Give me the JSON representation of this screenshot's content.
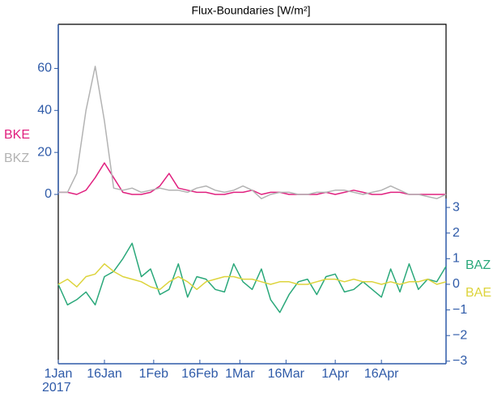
{
  "chart_data": {
    "type": "line",
    "title": "Flux-Boundaries [W/m²]",
    "x": [
      "2017-01-01",
      "2017-01-04",
      "2017-01-07",
      "2017-01-10",
      "2017-01-13",
      "2017-01-16",
      "2017-01-19",
      "2017-01-22",
      "2017-01-25",
      "2017-01-28",
      "2017-01-31",
      "2017-02-03",
      "2017-02-06",
      "2017-02-09",
      "2017-02-12",
      "2017-02-15",
      "2017-02-18",
      "2017-02-21",
      "2017-02-24",
      "2017-02-27",
      "2017-03-02",
      "2017-03-05",
      "2017-03-08",
      "2017-03-11",
      "2017-03-14",
      "2017-03-17",
      "2017-03-20",
      "2017-03-23",
      "2017-03-26",
      "2017-03-29",
      "2017-04-01",
      "2017-04-04",
      "2017-04-07",
      "2017-04-10",
      "2017-04-13",
      "2017-04-16",
      "2017-04-19",
      "2017-04-22",
      "2017-04-25",
      "2017-04-28",
      "2017-05-01",
      "2017-05-04",
      "2017-05-07"
    ],
    "x_sublabel": "2017",
    "xlim": [
      "2017-01-01",
      "2017-05-07"
    ],
    "xticks": [
      {
        "value": "2017-01-01",
        "label": "1Jan"
      },
      {
        "value": "2017-01-16",
        "label": "16Jan"
      },
      {
        "value": "2017-02-01",
        "label": "1Feb"
      },
      {
        "value": "2017-02-16",
        "label": "16Feb"
      },
      {
        "value": "2017-03-01",
        "label": "1Mar"
      },
      {
        "value": "2017-03-16",
        "label": "16Mar"
      },
      {
        "value": "2017-04-01",
        "label": "1Apr"
      },
      {
        "value": "2017-04-16",
        "label": "16Apr"
      }
    ],
    "ylim": [
      0,
      81
    ],
    "yticks": [
      0,
      20,
      40,
      60
    ],
    "y2lim": [
      -3.1,
      3.35
    ],
    "y2ticks": [
      3,
      2,
      1,
      0,
      {
        "value": -1,
        "label": "−1"
      },
      {
        "value": -2,
        "label": "−2"
      },
      {
        "value": -3,
        "label": "−3"
      }
    ],
    "series": [
      {
        "name": "BKE",
        "color": "#e0207f",
        "values": [
          1,
          1,
          0,
          2,
          8,
          15,
          8,
          1,
          0,
          0,
          1,
          4,
          10,
          3,
          2,
          1,
          1,
          0,
          0,
          1,
          1,
          2,
          0,
          1,
          1,
          0,
          0,
          0,
          0,
          1,
          0,
          1,
          2,
          1,
          0,
          0,
          1,
          1,
          0,
          0,
          0,
          0,
          0
        ]
      },
      {
        "name": "BKZ",
        "color": "#b3b3b3",
        "values": [
          1,
          1,
          10,
          40,
          61,
          35,
          3,
          2,
          3,
          1,
          2,
          3,
          2,
          2,
          1,
          3,
          4,
          2,
          1,
          2,
          4,
          2,
          -2,
          0,
          1,
          1,
          0,
          0,
          1,
          1,
          2,
          2,
          1,
          0,
          1,
          2,
          4,
          2,
          0,
          0,
          -1,
          -2,
          0
        ]
      },
      {
        "name": "BAZ",
        "color": "#2aa87a",
        "axis": "y2",
        "values": [
          0,
          -0.8,
          -0.6,
          -0.3,
          -0.8,
          0.3,
          0.5,
          1.0,
          1.6,
          0.3,
          0.6,
          -0.4,
          -0.2,
          0.8,
          -0.5,
          0.3,
          0.2,
          -0.2,
          -0.3,
          0.8,
          0.1,
          -0.2,
          0.6,
          -0.6,
          -1.1,
          -0.4,
          0.1,
          0.2,
          -0.4,
          0.3,
          0.4,
          -0.3,
          -0.2,
          0.1,
          -0.2,
          -0.5,
          0.6,
          -0.3,
          0.8,
          -0.2,
          0.2,
          0.1,
          0.7
        ]
      },
      {
        "name": "BAE",
        "color": "#ddd43c",
        "axis": "y2",
        "values": [
          0,
          0.2,
          -0.1,
          0.3,
          0.4,
          0.8,
          0.5,
          0.3,
          0.2,
          0.1,
          -0.1,
          -0.2,
          0.1,
          0.3,
          0.1,
          -0.2,
          0.1,
          0.2,
          0.3,
          0.3,
          0.2,
          0.2,
          0.1,
          0,
          0.1,
          0.1,
          0,
          0,
          0.1,
          0.2,
          0.2,
          0.1,
          0.2,
          0.1,
          0.1,
          0,
          0.1,
          0,
          0.1,
          0.1,
          0.2,
          0,
          0.1
        ]
      }
    ]
  }
}
